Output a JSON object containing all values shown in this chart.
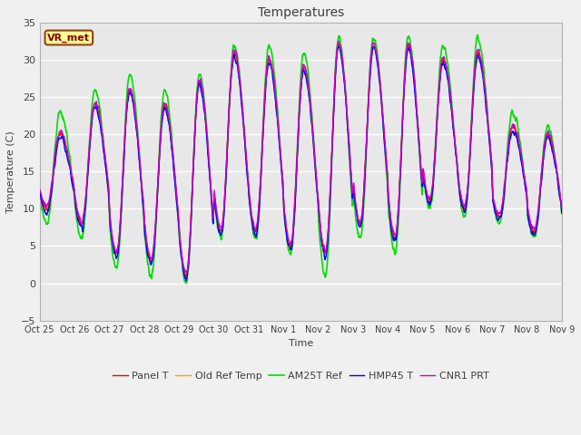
{
  "title": "Temperatures",
  "xlabel": "Time",
  "ylabel": "Temperature (C)",
  "ylim": [
    -5,
    35
  ],
  "annotation_text": "VR_met",
  "annotation_box_color": "#ffff99",
  "annotation_text_color": "#8b0000",
  "annotation_border_color": "#8b4513",
  "plot_bg_color": "#e8e8e8",
  "fig_bg_color": "#f0f0f0",
  "grid_color": "#ffffff",
  "x_tick_labels": [
    "Oct 25",
    "Oct 26",
    "Oct 27",
    "Oct 28",
    "Oct 29",
    "Oct 30",
    "Oct 31",
    "Nov 1",
    "Nov 2",
    "Nov 3",
    "Nov 4",
    "Nov 5",
    "Nov 6",
    "Nov 7",
    "Nov 8",
    "Nov 9"
  ],
  "series": [
    {
      "label": "Panel T",
      "color": "#ff0000",
      "lw": 1.0,
      "zorder": 4
    },
    {
      "label": "Old Ref Temp",
      "color": "#ffa500",
      "lw": 1.0,
      "zorder": 3
    },
    {
      "label": "AM25T Ref",
      "color": "#00dd00",
      "lw": 1.2,
      "zorder": 2
    },
    {
      "label": "HMP45 T",
      "color": "#0000ff",
      "lw": 1.0,
      "zorder": 5
    },
    {
      "label": "CNR1 PRT",
      "color": "#cc00cc",
      "lw": 1.0,
      "zorder": 5
    }
  ],
  "peak_temps": [
    20,
    24,
    26,
    24,
    27,
    31,
    30,
    29,
    32,
    32,
    32,
    30,
    31,
    21,
    20,
    20
  ],
  "trough_temps": [
    10,
    8,
    4,
    3,
    1,
    7,
    7,
    5,
    4,
    8,
    6,
    11,
    10,
    9,
    7,
    6
  ],
  "am25t_peak_boost": [
    3,
    2,
    2,
    2,
    1,
    1,
    2,
    2,
    1,
    1,
    1,
    2,
    2,
    2,
    1,
    1
  ],
  "am25t_trough_drop": [
    2,
    2,
    2,
    2,
    1,
    1,
    1,
    1,
    3,
    2,
    2,
    1,
    1,
    1,
    1,
    2
  ],
  "total_days": 15,
  "n_points": 2160
}
